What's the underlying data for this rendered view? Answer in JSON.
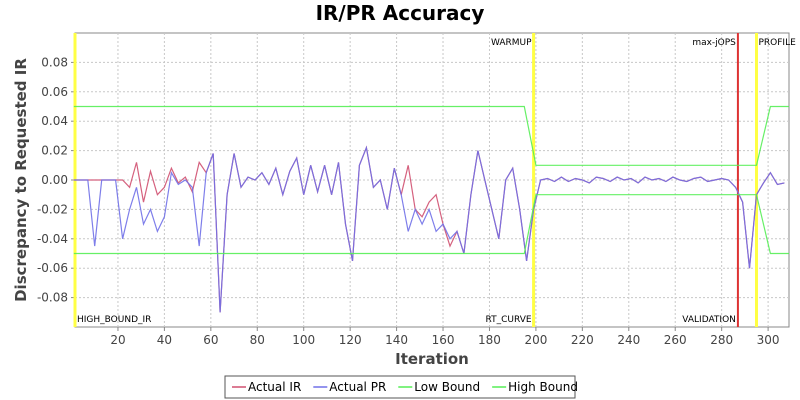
{
  "chart_data": {
    "type": "line",
    "title": "IR/PR Accuracy",
    "x_label": "Iteration",
    "y_label": "Discrepancy to Requested IR",
    "xlim": [
      1.5,
      309
    ],
    "ylim": [
      -0.1,
      0.1
    ],
    "xticks": [
      20,
      40,
      60,
      80,
      100,
      120,
      140,
      160,
      180,
      200,
      220,
      240,
      260,
      280,
      300
    ],
    "yticks": [
      {
        "value": 0.08,
        "label": "0.08"
      },
      {
        "value": 0.06,
        "label": "0.06"
      },
      {
        "value": 0.04,
        "label": "0.04"
      },
      {
        "value": 0.02,
        "label": "0.02"
      },
      {
        "value": 0,
        "label": "0.00"
      },
      {
        "value": -0.02,
        "label": "-0.02"
      },
      {
        "value": -0.04,
        "label": "-0.04"
      },
      {
        "value": -0.06,
        "label": "-0.06"
      },
      {
        "value": -0.08,
        "label": "-0.08"
      }
    ],
    "grid": true,
    "legend": "bottom",
    "x": [
      1,
      4,
      7,
      10,
      13,
      16,
      19,
      22,
      25,
      28,
      31,
      34,
      37,
      40,
      43,
      46,
      49,
      52,
      55,
      58,
      61,
      64,
      67,
      70,
      73,
      76,
      79,
      82,
      85,
      88,
      91,
      94,
      97,
      100,
      103,
      106,
      109,
      112,
      115,
      118,
      121,
      124,
      127,
      130,
      133,
      136,
      139,
      142,
      145,
      148,
      151,
      154,
      157,
      160,
      163,
      166,
      169,
      172,
      175,
      178,
      181,
      184,
      187,
      190,
      193,
      196,
      199,
      202,
      205,
      208,
      211,
      214,
      217,
      220,
      223,
      226,
      229,
      232,
      235,
      238,
      241,
      244,
      247,
      250,
      253,
      256,
      259,
      262,
      265,
      268,
      271,
      274,
      277,
      280,
      283,
      286,
      289,
      292,
      295,
      298,
      301,
      304,
      307
    ],
    "series": [
      {
        "name": "Actual IR",
        "color": "#d05070",
        "values": [
          0,
          0,
          0,
          0,
          0,
          0,
          0,
          0,
          -0.005,
          0.012,
          -0.015,
          0.006,
          -0.01,
          -0.005,
          0.008,
          -0.002,
          0.002,
          -0.008,
          0.012,
          0.005,
          0.018,
          -0.09,
          -0.01,
          0.018,
          -0.005,
          0.002,
          0,
          0.005,
          -0.003,
          0.008,
          -0.01,
          0.006,
          0.015,
          -0.01,
          0.01,
          -0.008,
          0.01,
          -0.01,
          0.012,
          -0.03,
          -0.055,
          0.01,
          0.022,
          -0.005,
          0,
          -0.02,
          0.008,
          -0.01,
          0.01,
          -0.02,
          -0.025,
          -0.015,
          -0.01,
          -0.03,
          -0.045,
          -0.035,
          -0.05,
          -0.01,
          0.02,
          0,
          -0.02,
          -0.04,
          0,
          0.008,
          -0.02,
          -0.055,
          -0.02,
          0,
          0.001,
          -0.001,
          0.002,
          -0.001,
          0.001,
          0,
          -0.002,
          0.002,
          0.001,
          -0.001,
          0.002,
          0,
          0.001,
          -0.002,
          0.002,
          0,
          0.001,
          -0.001,
          0.002,
          0,
          -0.001,
          0.001,
          0.002,
          -0.001,
          0,
          0.001,
          0,
          -0.005,
          -0.015,
          -0.06,
          -0.01,
          -0.002,
          0.005,
          -0.003,
          -0.002
        ]
      },
      {
        "name": "Actual PR",
        "color": "#7070e8",
        "values": [
          0,
          0,
          0,
          -0.045,
          0,
          0,
          0,
          -0.04,
          -0.02,
          -0.005,
          -0.03,
          -0.02,
          -0.035,
          -0.025,
          0.005,
          -0.003,
          0,
          -0.005,
          -0.045,
          0.005,
          0.018,
          -0.09,
          -0.01,
          0.018,
          -0.005,
          0.002,
          0,
          0.005,
          -0.003,
          0.008,
          -0.01,
          0.006,
          0.015,
          -0.01,
          0.01,
          -0.008,
          0.01,
          -0.01,
          0.012,
          -0.03,
          -0.055,
          0.01,
          0.022,
          -0.005,
          0,
          -0.02,
          0.008,
          -0.01,
          -0.035,
          -0.02,
          -0.03,
          -0.02,
          -0.035,
          -0.03,
          -0.04,
          -0.035,
          -0.05,
          -0.01,
          0.02,
          0,
          -0.02,
          -0.04,
          0,
          0.008,
          -0.02,
          -0.055,
          -0.02,
          0,
          0.001,
          -0.001,
          0.002,
          -0.001,
          0.001,
          0,
          -0.002,
          0.002,
          0.001,
          -0.001,
          0.002,
          0,
          0.001,
          -0.002,
          0.002,
          0,
          0.001,
          -0.001,
          0.002,
          0,
          -0.001,
          0.001,
          0.002,
          -0.001,
          0,
          0.001,
          0,
          -0.005,
          -0.015,
          -0.06,
          -0.01,
          -0.002,
          0.005,
          -0.003,
          -0.002
        ]
      },
      {
        "name": "Low Bound",
        "color": "#55ee55",
        "x": [
          1,
          195,
          200,
          295,
          301,
          309
        ],
        "values": [
          -0.05,
          -0.05,
          -0.01,
          -0.01,
          -0.05,
          -0.05
        ]
      },
      {
        "name": "High Bound",
        "color": "#55ee55",
        "x": [
          1,
          195,
          200,
          295,
          301,
          309
        ],
        "values": [
          0.05,
          0.05,
          0.01,
          0.01,
          0.05,
          0.05
        ]
      }
    ],
    "markers": [
      {
        "x": 1.5,
        "color": "#ffff44",
        "bottom_label": "HIGH_BOUND_IR"
      },
      {
        "x": 199,
        "color": "#ffff44",
        "top_label": "WARMUP",
        "bottom_label": "RT_CURVE"
      },
      {
        "x": 287,
        "color": "#dd3333",
        "top_label": "max-jOPS",
        "bottom_label": "VALIDATION"
      },
      {
        "x": 295,
        "color": "#ffff44",
        "top_label": "PROFILE"
      }
    ]
  }
}
